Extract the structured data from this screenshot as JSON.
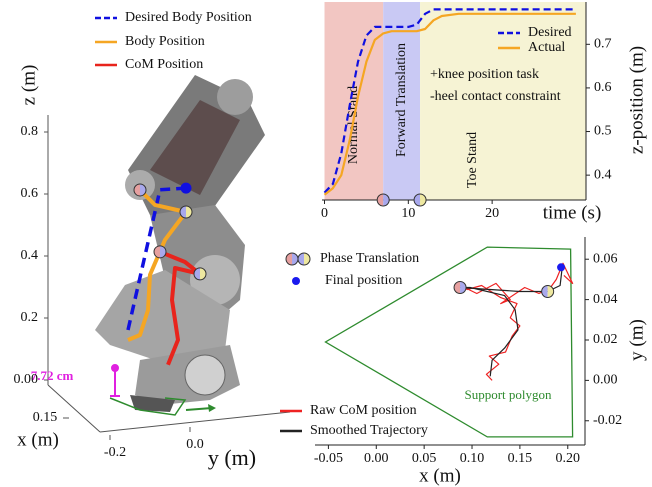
{
  "chart_data": [
    {
      "type": "line3d",
      "xlabel": "x (m)",
      "ylabel": "y (m)",
      "zlabel": "z (m)",
      "xticks": [
        0.15
      ],
      "yticks": [
        -0.2,
        {
          "value": 0,
          "label": "0.0"
        }
      ],
      "zticks": [
        {
          "value": 0,
          "label": "0.00"
        },
        0.2,
        0.4,
        0.6,
        0.8
      ],
      "annotation": "7.72 cm",
      "series": [
        {
          "name": "Desired Body Position",
          "color": "#1010e0",
          "dashed": true,
          "end_dot": true,
          "y": [
            -0.155,
            -0.075,
            -0.01
          ],
          "z": [
            0.136,
            0.578,
            0.575
          ]
        },
        {
          "name": "Body Position",
          "color": "#f5a623",
          "y": [
            -0.125,
            -0.0875,
            -0.01,
            -0.0625,
            -0.1,
            -0.105,
            -0.125,
            -0.155
          ],
          "z": [
            0.584,
            0.531,
            0.498,
            0.415,
            0.307,
            0.194,
            0.116,
            0.104
          ]
        },
        {
          "name": "CoM Position",
          "color": "#e8241c",
          "y": [
            -0.075,
            -0.0125,
            0.025,
            -0.0375,
            -0.045,
            -0.03,
            -0.055
          ],
          "z": [
            0.378,
            0.337,
            0.294,
            0.321,
            0.219,
            0.088,
            0.011
          ]
        }
      ]
    },
    {
      "type": "line",
      "xlabel": "time (s)",
      "ylabel": "z-position (m)",
      "x": [
        0,
        1,
        2,
        3,
        4,
        5,
        6,
        7,
        8,
        9,
        10,
        11,
        12,
        13,
        14,
        16,
        20,
        25,
        30
      ],
      "xlim": [
        -0.3,
        31.2
      ],
      "ylim": [
        0.343,
        0.797
      ],
      "xticks": [
        0,
        10,
        20
      ],
      "yticks": [
        0.4,
        0.5,
        0.6,
        0.7
      ],
      "y_axis_side": "right",
      "legend": "upper right",
      "regions": [
        {
          "label": "Normal Stand",
          "start": 0,
          "end": 7,
          "color": "#f2c6c2"
        },
        {
          "label": "Forward Translation",
          "start": 7,
          "end": 11.4,
          "color": "#c9c9f4"
        },
        {
          "label": "Toe Stand",
          "start": 11.4,
          "end": 31.2,
          "color": "#f6f3d4"
        }
      ],
      "annotations": [
        "+knee position task",
        "-heel contact constraint"
      ],
      "series": [
        {
          "name": "Desired",
          "color": "#1010e0",
          "dashed": true,
          "values": [
            0.36,
            0.38,
            0.45,
            0.56,
            0.66,
            0.72,
            0.74,
            0.74,
            0.74,
            0.74,
            0.74,
            0.745,
            0.77,
            0.78,
            0.78,
            0.78,
            0.78,
            0.78,
            0.78
          ]
        },
        {
          "name": "Actual",
          "color": "#f5a623",
          "values": [
            0.355,
            0.37,
            0.4,
            0.48,
            0.58,
            0.66,
            0.71,
            0.725,
            0.73,
            0.73,
            0.73,
            0.73,
            0.735,
            0.755,
            0.765,
            0.77,
            0.77,
            0.77,
            0.77
          ]
        }
      ]
    },
    {
      "type": "line",
      "xlabel": "x (m)",
      "ylabel": "y (m)",
      "xlim": [
        -0.064,
        0.218
      ],
      "ylim": [
        -0.032,
        0.071
      ],
      "xticks": [
        -0.05,
        {
          "value": 0,
          "label": "0.00"
        },
        0.05,
        {
          "value": 0.1,
          "label": "0.10"
        },
        0.15,
        {
          "value": 0.2,
          "label": "0.20"
        }
      ],
      "yticks": [
        -0.02,
        {
          "value": 0,
          "label": "0.00"
        },
        0.02,
        0.04,
        0.06
      ],
      "y_axis_side": "right",
      "polygon": {
        "label": "Support polygon",
        "color": "#2e8b2e",
        "x": [
          0.116,
          0.203,
          0.205,
          0.116,
          -0.053
        ],
        "y": [
          0.066,
          0.065,
          -0.028,
          -0.028,
          0.019
        ]
      },
      "series": [
        {
          "name": "Raw CoM position",
          "color": "#ee2222",
          "x": [
            0.121,
            0.115,
            0.128,
            0.118,
            0.135,
            0.142,
            0.15,
            0.14,
            0.147,
            0.13,
            0.11,
            0.095,
            0.088,
            0.105,
            0.125,
            0.14,
            0.13,
            0.155,
            0.17,
            0.182,
            0.188,
            0.195,
            0.205,
            0.196
          ],
          "values": [
            0.0,
            0.003,
            0.008,
            0.012,
            0.014,
            0.022,
            0.027,
            0.031,
            0.038,
            0.041,
            0.047,
            0.045,
            0.047,
            0.043,
            0.048,
            0.04,
            0.038,
            0.046,
            0.043,
            0.046,
            0.05,
            0.058,
            0.048,
            0.052
          ]
        },
        {
          "name": "Smoothed Trajectory",
          "color": "#222222",
          "x": [
            0.119,
            0.121,
            0.134,
            0.148,
            0.145,
            0.134,
            0.098,
            0.0875,
            0.119,
            0.15,
            0.179,
            0.192,
            0.194
          ],
          "values": [
            0.002,
            0.01,
            0.016,
            0.025,
            0.035,
            0.042,
            0.046,
            0.046,
            0.045,
            0.044,
            0.044,
            0.047,
            0.055
          ]
        },
        {
          "name": "Phase Translation",
          "marker": "split",
          "colors": [
            "#e6a0a0",
            "#a8a8ec",
            "#eee8a0"
          ],
          "x": [
            0.0875,
            0.179
          ],
          "values": [
            0.046,
            0.044
          ]
        },
        {
          "name": "Final position",
          "marker": "dot",
          "color": "#1a1aee",
          "x": [
            0.193
          ],
          "values": [
            0.056
          ]
        }
      ]
    }
  ]
}
